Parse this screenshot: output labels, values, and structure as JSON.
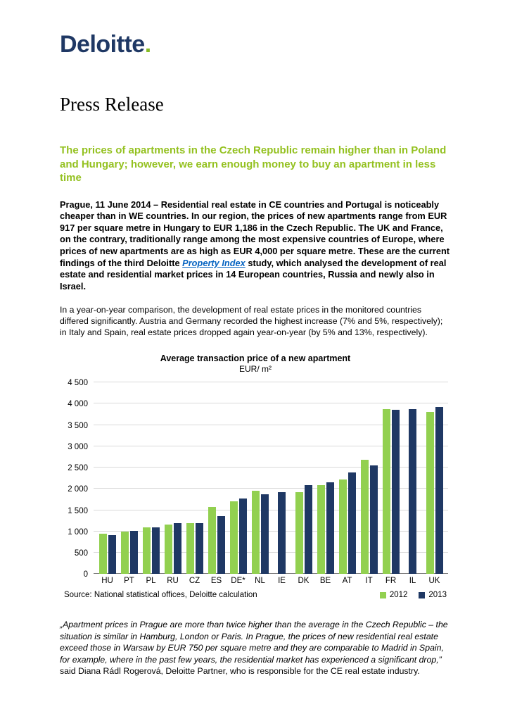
{
  "logo": {
    "text": "Deloitte",
    "dot": "."
  },
  "title": "Press Release",
  "headline": "The prices of apartments in the Czech Republic remain higher than in Poland and Hungary; however, we earn enough money to buy an apartment in less time",
  "lead": {
    "part1": "Prague, 11 June 2014 – Residential real estate in CE countries and Portugal is noticeably cheaper than in WE countries. In our region, the prices of new apartments range from EUR 917 per square metre in Hungary to EUR 1,186 in the Czech Republic. The UK and France, on the contrary, traditionally range among the most expensive countries of Europe, where prices of new apartments are as high as EUR 4,000 per square metre. These are the current findings of the third Deloitte ",
    "link_text": "Property Index",
    "part2": " study, which analysed the development of real estate and residential market prices in 14 European countries, Russia and newly also in Israel."
  },
  "paragraph2": "In a year-on-year comparison, the development of real estate prices in the monitored countries differed significantly. Austria and Germany recorded the highest increase (7% and 5%, respectively); in Italy and Spain, real estate prices dropped again year-on-year (by 5% and 13%, respectively).",
  "chart_data": {
    "type": "bar",
    "title": "Average transaction price of a new apartment",
    "subtitle": "EUR/ m²",
    "categories": [
      "HU",
      "PT",
      "PL",
      "RU",
      "CZ",
      "ES",
      "DE*",
      "NL",
      "IE",
      "DK",
      "BE",
      "AT",
      "IT",
      "FR",
      "IL",
      "UK"
    ],
    "series": [
      {
        "name": "2012",
        "color": "#92d050",
        "values": [
          950,
          1000,
          1100,
          1160,
          1190,
          1570,
          1700,
          1950,
          null,
          1930,
          2090,
          2220,
          2690,
          3870,
          null,
          3800
        ]
      },
      {
        "name": "2013",
        "color": "#1f3864",
        "values": [
          917,
          1010,
          1100,
          1190,
          1186,
          1360,
          1780,
          1870,
          1930,
          2080,
          2160,
          2380,
          2550,
          3860,
          3870,
          3920
        ]
      }
    ],
    "ylim": [
      0,
      4500
    ],
    "ytick_step": 500,
    "yticks": [
      "0",
      "500",
      "1 000",
      "1 500",
      "2 000",
      "2 500",
      "3 000",
      "3 500",
      "4 000",
      "4 500"
    ],
    "grid": true,
    "legend_position": "bottom-right",
    "source": "Source: National statistical offices, Deloitte calculation"
  },
  "quote": {
    "text": "„Apartment prices in Prague are more than twice higher than the average in the Czech Republic – the situation is similar in Hamburg, London or Paris. In Prague, the prices of new residential real estate exceed those in Warsaw by EUR 750 per square metre and they are comparable to Madrid in Spain, for example, where in the past few years, the residential market has experienced a significant drop,”",
    "attribution": " said Diana Rádl Rogerová, Deloitte Partner, who is responsible for the CE real estate industry."
  },
  "colors": {
    "headline_green": "#94c120",
    "logo_blue": "#1f3864",
    "logo_dot_green": "#86bc25",
    "link_blue": "#0563c1"
  }
}
